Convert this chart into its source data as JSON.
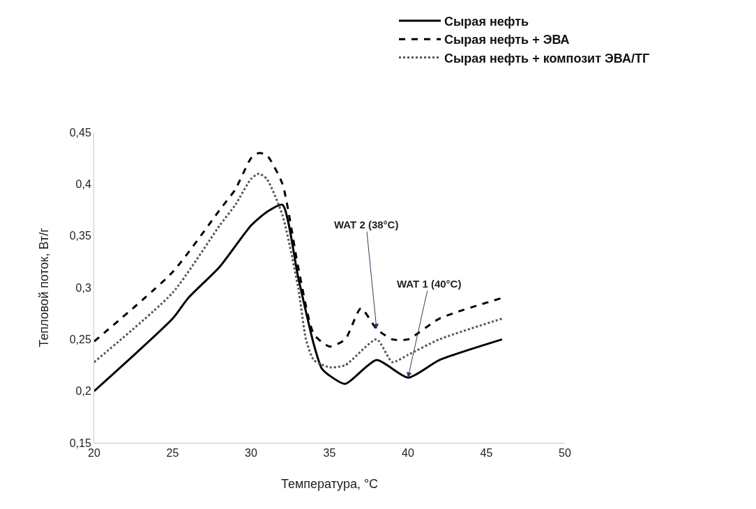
{
  "chart_data": {
    "type": "line",
    "xlabel": "Температура, °C",
    "ylabel": "Тепловой поток, Вт/г",
    "xlim": [
      20,
      50
    ],
    "xticks": [
      20,
      25,
      30,
      35,
      40,
      45,
      50
    ],
    "ylim": [
      0.15,
      0.45
    ],
    "yticks": [
      {
        "value": 0.15,
        "label": "0,15"
      },
      {
        "value": 0.2,
        "label": "0,2"
      },
      {
        "value": 0.25,
        "label": "0,25"
      },
      {
        "value": 0.3,
        "label": "0,3"
      },
      {
        "value": 0.35,
        "label": "0,35"
      },
      {
        "value": 0.4,
        "label": "0,4"
      },
      {
        "value": 0.45,
        "label": "0,45"
      }
    ],
    "legend": "top right",
    "marker": "none",
    "series": [
      {
        "name": "Сырая нефть",
        "color": "#000000",
        "line_style": "solid",
        "x": [
          20,
          25,
          26,
          28,
          30,
          31,
          32,
          33,
          34,
          34.5,
          35,
          36,
          38,
          40,
          42,
          46
        ],
        "values": [
          0.2,
          0.27,
          0.29,
          0.32,
          0.36,
          0.373,
          0.38,
          0.31,
          0.245,
          0.222,
          0.215,
          0.207,
          0.23,
          0.213,
          0.23,
          0.25
        ]
      },
      {
        "name": "Сырая нефть + ЭВА",
        "color": "#000000",
        "line_style": "dashed",
        "x": [
          20,
          25,
          28,
          29,
          30,
          30.5,
          31,
          32,
          33,
          34,
          35,
          36,
          37,
          38,
          39,
          40,
          42,
          46
        ],
        "values": [
          0.248,
          0.315,
          0.375,
          0.395,
          0.425,
          0.43,
          0.428,
          0.4,
          0.32,
          0.255,
          0.243,
          0.25,
          0.28,
          0.26,
          0.25,
          0.25,
          0.27,
          0.29
        ]
      },
      {
        "name": "Сырая нефть + композит ЭВА/ТГ",
        "color": "#555555",
        "line_style": "dotted",
        "x": [
          20,
          25,
          28,
          29,
          30,
          30.5,
          31,
          32,
          33,
          33.5,
          34,
          35,
          36,
          38,
          39,
          40,
          42,
          46
        ],
        "values": [
          0.228,
          0.295,
          0.36,
          0.38,
          0.405,
          0.41,
          0.405,
          0.37,
          0.3,
          0.25,
          0.23,
          0.223,
          0.225,
          0.25,
          0.228,
          0.235,
          0.25,
          0.27
        ]
      }
    ],
    "annotations": [
      {
        "text": "WAT 2 (38°C)",
        "x": 38,
        "y": 0.26
      },
      {
        "text": "WAT 1 (40°C)",
        "x": 40,
        "y": 0.213
      }
    ]
  }
}
